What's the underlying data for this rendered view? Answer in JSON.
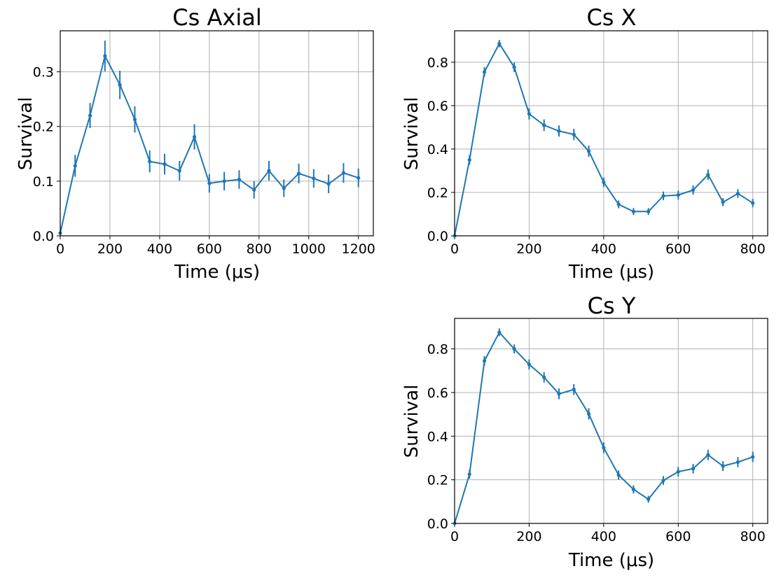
{
  "colors": {
    "series": "#1f77b4",
    "grid": "#b0b0b0"
  },
  "chart_data": [
    {
      "type": "line",
      "title": "Cs Axial",
      "xlabel": "Time (μs)",
      "ylabel": "Survival",
      "xlim": [
        0,
        1260
      ],
      "ylim": [
        0,
        0.375
      ],
      "xticks": [
        0,
        200,
        400,
        600,
        800,
        1000,
        1200
      ],
      "yticks": [
        0.0,
        0.1,
        0.2,
        0.3
      ],
      "xtick_labels": [
        "0",
        "200",
        "400",
        "600",
        "800",
        "1000",
        "1200"
      ],
      "ytick_labels": [
        "0.0",
        "0.1",
        "0.2",
        "0.3"
      ],
      "grid": true,
      "series": [
        {
          "x": [
            0,
            60,
            120,
            180,
            240,
            300,
            360,
            420,
            480,
            540,
            600,
            660,
            720,
            780,
            840,
            900,
            960,
            1020,
            1080,
            1140,
            1200
          ],
          "y": [
            0.005,
            0.128,
            0.22,
            0.329,
            0.276,
            0.213,
            0.136,
            0.131,
            0.119,
            0.181,
            0.096,
            0.1,
            0.103,
            0.084,
            0.119,
            0.087,
            0.114,
            0.105,
            0.095,
            0.115,
            0.106
          ],
          "yerr": [
            0.002,
            0.02,
            0.023,
            0.028,
            0.026,
            0.024,
            0.02,
            0.019,
            0.018,
            0.023,
            0.017,
            0.017,
            0.017,
            0.016,
            0.018,
            0.016,
            0.018,
            0.017,
            0.017,
            0.018,
            0.017
          ]
        }
      ]
    },
    {
      "type": "line",
      "title": "Cs X",
      "xlabel": "Time (μs)",
      "ylabel": "Survival",
      "xlim": [
        0,
        840
      ],
      "ylim": [
        0,
        0.945
      ],
      "xticks": [
        0,
        200,
        400,
        600,
        800
      ],
      "yticks": [
        0.0,
        0.2,
        0.4,
        0.6,
        0.8
      ],
      "xtick_labels": [
        "0",
        "200",
        "400",
        "600",
        "800"
      ],
      "ytick_labels": [
        "0.0",
        "0.2",
        "0.4",
        "0.6",
        "0.8"
      ],
      "grid": true,
      "series": [
        {
          "x": [
            0,
            40,
            80,
            120,
            160,
            200,
            240,
            280,
            320,
            360,
            400,
            440,
            480,
            520,
            560,
            600,
            640,
            680,
            720,
            760,
            800
          ],
          "y": [
            0.0,
            0.35,
            0.755,
            0.886,
            0.777,
            0.562,
            0.51,
            0.483,
            0.467,
            0.39,
            0.247,
            0.145,
            0.112,
            0.112,
            0.184,
            0.188,
            0.211,
            0.282,
            0.155,
            0.195,
            0.151
          ],
          "yerr": [
            0.002,
            0.022,
            0.022,
            0.017,
            0.022,
            0.026,
            0.027,
            0.026,
            0.026,
            0.026,
            0.022,
            0.018,
            0.016,
            0.016,
            0.02,
            0.02,
            0.021,
            0.024,
            0.019,
            0.02,
            0.019
          ]
        }
      ]
    },
    {
      "type": "line",
      "title": "Cs Y",
      "xlabel": "Time (μs)",
      "ylabel": "Survival",
      "xlim": [
        0,
        840
      ],
      "ylim": [
        0,
        0.94
      ],
      "xticks": [
        0,
        200,
        400,
        600,
        800
      ],
      "yticks": [
        0.0,
        0.2,
        0.4,
        0.6,
        0.8
      ],
      "xtick_labels": [
        "0",
        "200",
        "400",
        "600",
        "800"
      ],
      "ytick_labels": [
        "0.0",
        "0.2",
        "0.4",
        "0.6",
        "0.8"
      ],
      "grid": true,
      "series": [
        {
          "x": [
            0,
            40,
            80,
            120,
            160,
            200,
            240,
            280,
            320,
            360,
            400,
            440,
            480,
            520,
            560,
            600,
            640,
            680,
            720,
            760,
            800
          ],
          "y": [
            0.0,
            0.226,
            0.745,
            0.876,
            0.8,
            0.729,
            0.67,
            0.594,
            0.614,
            0.502,
            0.347,
            0.222,
            0.156,
            0.111,
            0.197,
            0.237,
            0.251,
            0.314,
            0.263,
            0.281,
            0.305
          ],
          "yerr": [
            0.002,
            0.021,
            0.022,
            0.018,
            0.021,
            0.023,
            0.024,
            0.025,
            0.025,
            0.026,
            0.025,
            0.021,
            0.019,
            0.016,
            0.02,
            0.022,
            0.022,
            0.024,
            0.023,
            0.023,
            0.024
          ]
        }
      ]
    }
  ]
}
